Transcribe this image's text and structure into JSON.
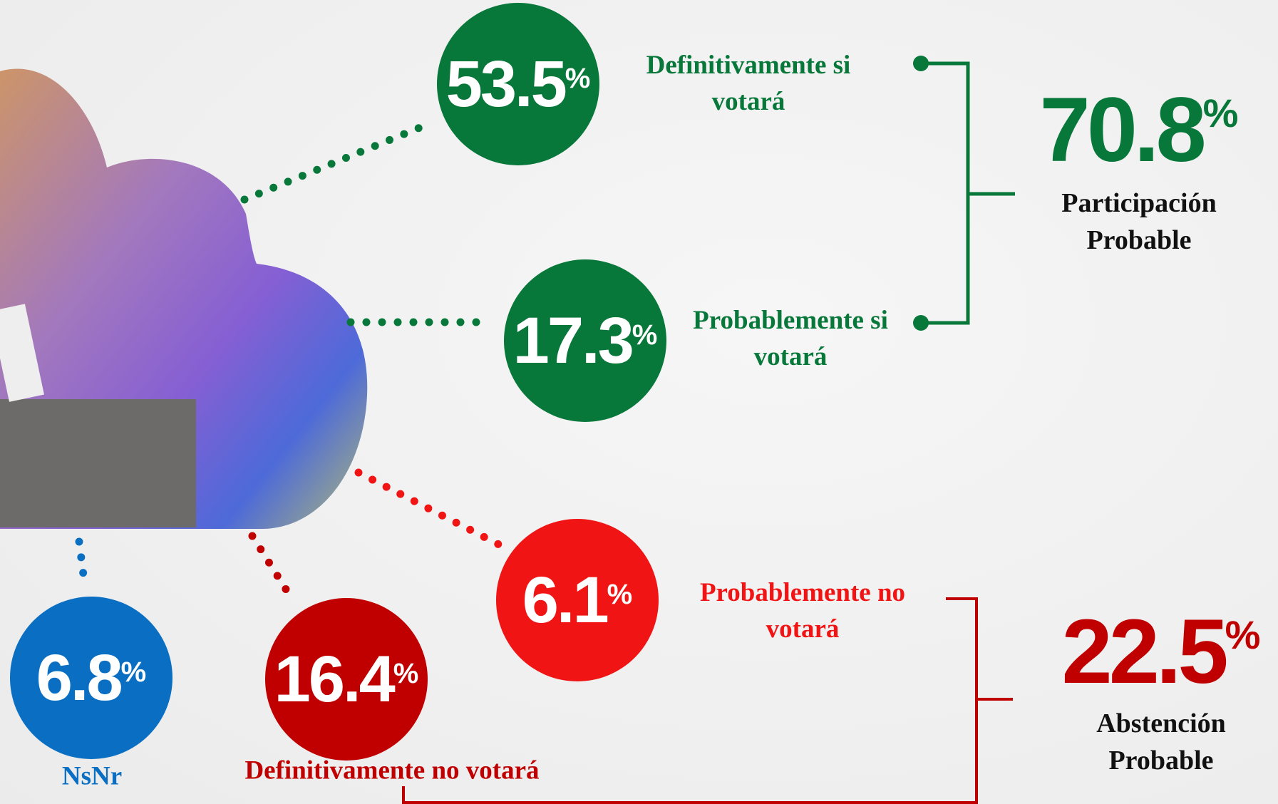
{
  "unit": "%",
  "items": [
    {
      "value": 53.5,
      "label": "Definitivamente si votará",
      "color": "#08773a"
    },
    {
      "value": 17.3,
      "label": "Probablemente si votará",
      "color": "#08773a"
    },
    {
      "value": 6.1,
      "label": "Probablemente no votará",
      "color": "#f01414"
    },
    {
      "value": 16.4,
      "label": "Definitivamente no votará",
      "color": "#c00000"
    },
    {
      "value": 6.8,
      "label": "NsNr",
      "color": "#0a6fc2"
    }
  ],
  "groups": [
    {
      "value": 70.8,
      "label": "Participación Probable",
      "color": "#08773a"
    },
    {
      "value": 22.5,
      "label": "Abstención Probable",
      "color": "#c00000"
    }
  ]
}
